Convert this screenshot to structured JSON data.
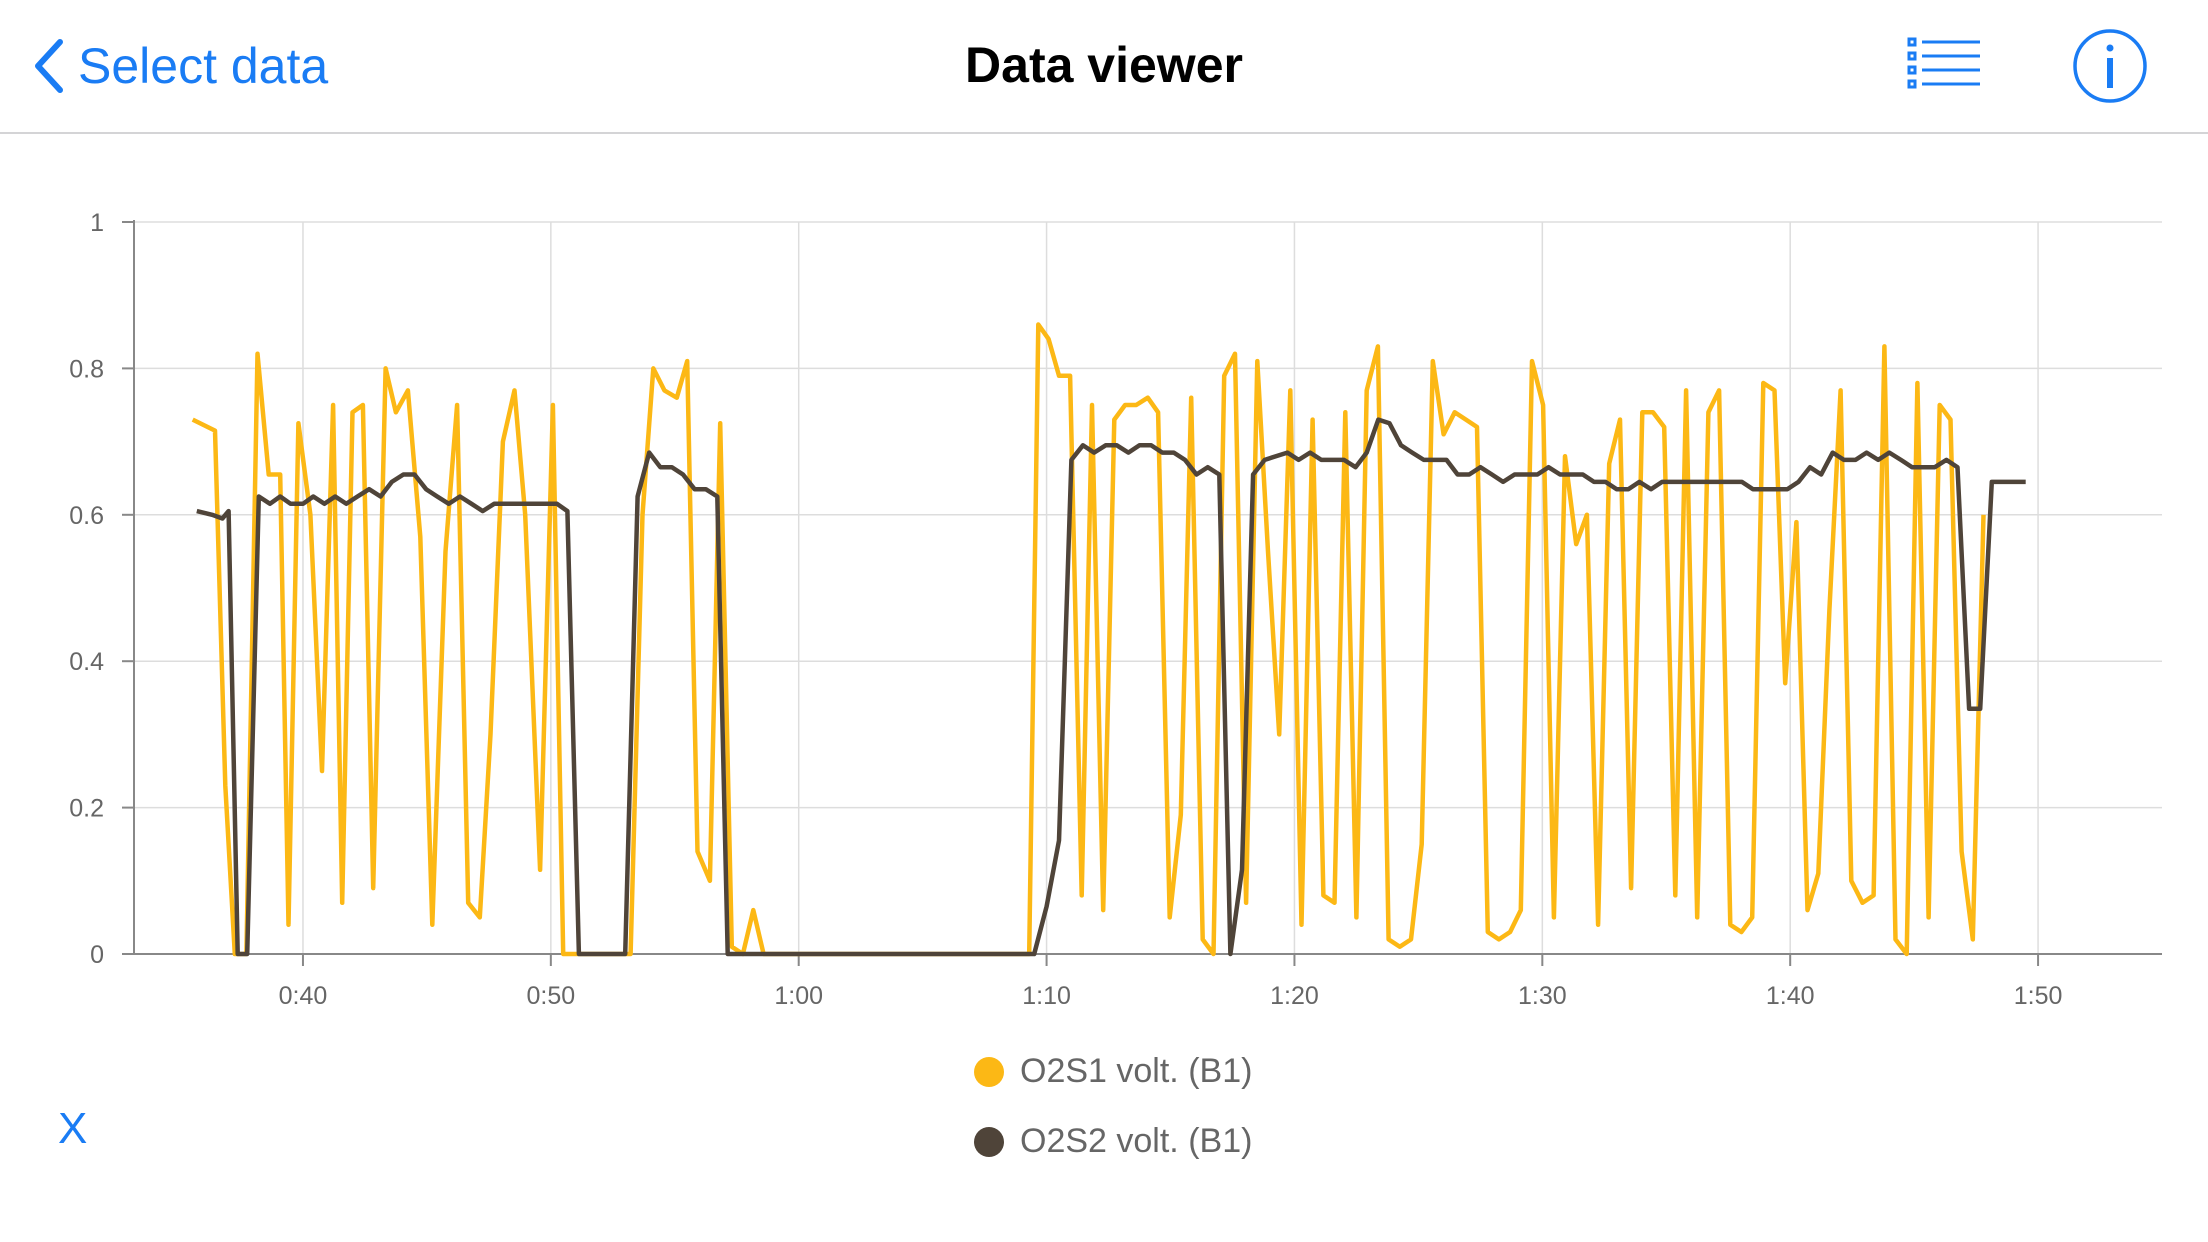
{
  "navbar": {
    "back_label": "Select data",
    "title": "Data viewer"
  },
  "icons": {
    "back": "chevron-left-icon",
    "list": "list-icon",
    "info": "info-icon"
  },
  "colors": {
    "accent": "#1a7cf4",
    "series1": "#fcb815",
    "series2": "#4f4439",
    "grid": "#dddddd",
    "axis": "#888888",
    "tick_text": "#666666"
  },
  "x_axis_label": "X",
  "chart_data": {
    "type": "line",
    "xlabel": "",
    "ylabel": "",
    "ylim": [
      0,
      1
    ],
    "xlim": [
      "0:33:11",
      "1:55:00"
    ],
    "yticks": [
      "0",
      "0.2",
      "0.4",
      "0.6",
      "0.8",
      "1"
    ],
    "xticks": [
      "0:40",
      "0:50",
      "1:00",
      "1:10",
      "1:20",
      "1:30",
      "1:40",
      "1:50"
    ],
    "grid": true,
    "legend_position": "bottom",
    "series": [
      {
        "name": "O2S1 volt. (B1)",
        "color": "#fcb815",
        "points": [
          [
            "0:35:33",
            0.73
          ],
          [
            "0:36:27",
            0.715
          ],
          [
            "0:36:52",
            0.23
          ],
          [
            "0:37:15",
            0.0
          ],
          [
            "0:37:43",
            0.0
          ],
          [
            "0:38:10",
            0.82
          ],
          [
            "0:38:37",
            0.655
          ],
          [
            "0:39:05",
            0.655
          ],
          [
            "0:39:25",
            0.04
          ],
          [
            "0:39:49",
            0.725
          ],
          [
            "0:40:18",
            0.6
          ],
          [
            "0:40:46",
            0.25
          ],
          [
            "0:41:13",
            0.75
          ],
          [
            "0:41:35",
            0.07
          ],
          [
            "0:42:00",
            0.74
          ],
          [
            "0:42:25",
            0.75
          ],
          [
            "0:42:50",
            0.09
          ],
          [
            "0:43:20",
            0.8
          ],
          [
            "0:43:45",
            0.74
          ],
          [
            "0:44:14",
            0.77
          ],
          [
            "0:44:44",
            0.57
          ],
          [
            "0:45:13",
            0.04
          ],
          [
            "0:45:45",
            0.55
          ],
          [
            "0:46:13",
            0.75
          ],
          [
            "0:46:40",
            0.07
          ],
          [
            "0:47:08",
            0.05
          ],
          [
            "0:47:34",
            0.3
          ],
          [
            "0:48:04",
            0.7
          ],
          [
            "0:48:32",
            0.77
          ],
          [
            "0:48:58",
            0.6
          ],
          [
            "0:49:34",
            0.115
          ],
          [
            "0:50:05",
            0.75
          ],
          [
            "0:50:30",
            0.0
          ],
          [
            "0:51:00",
            0.0
          ],
          [
            "0:51:26",
            0.0
          ],
          [
            "0:51:52",
            0.0
          ],
          [
            "0:52:20",
            0.0
          ],
          [
            "0:52:48",
            0.0
          ],
          [
            "0:53:13",
            0.0
          ],
          [
            "0:53:42",
            0.6
          ],
          [
            "0:54:08",
            0.8
          ],
          [
            "0:54:35",
            0.77
          ],
          [
            "0:55:05",
            0.76
          ],
          [
            "0:55:30",
            0.81
          ],
          [
            "0:55:55",
            0.14
          ],
          [
            "0:56:25",
            0.1
          ],
          [
            "0:56:50",
            0.725
          ],
          [
            "0:57:18",
            0.01
          ],
          [
            "0:57:45",
            0.0
          ],
          [
            "0:58:10",
            0.06
          ],
          [
            "0:58:35",
            0.0
          ],
          [
            "1:09:18",
            0.0
          ],
          [
            "1:09:40",
            0.86
          ],
          [
            "1:10:05",
            0.84
          ],
          [
            "1:10:30",
            0.79
          ],
          [
            "1:10:57",
            0.79
          ],
          [
            "1:11:25",
            0.08
          ],
          [
            "1:11:50",
            0.75
          ],
          [
            "1:12:17",
            0.06
          ],
          [
            "1:12:44",
            0.73
          ],
          [
            "1:13:10",
            0.75
          ],
          [
            "1:13:37",
            0.75
          ],
          [
            "1:14:05",
            0.76
          ],
          [
            "1:14:30",
            0.74
          ],
          [
            "1:14:58",
            0.05
          ],
          [
            "1:15:25",
            0.19
          ],
          [
            "1:15:50",
            0.76
          ],
          [
            "1:16:18",
            0.02
          ],
          [
            "1:16:44",
            0.0
          ],
          [
            "1:17:10",
            0.79
          ],
          [
            "1:17:36",
            0.82
          ],
          [
            "1:18:03",
            0.07
          ],
          [
            "1:18:30",
            0.81
          ],
          [
            "1:18:56",
            0.55
          ],
          [
            "1:19:23",
            0.3
          ],
          [
            "1:19:50",
            0.77
          ],
          [
            "1:20:17",
            0.04
          ],
          [
            "1:20:44",
            0.73
          ],
          [
            "1:21:10",
            0.08
          ],
          [
            "1:21:37",
            0.07
          ],
          [
            "1:22:03",
            0.74
          ],
          [
            "1:22:30",
            0.05
          ],
          [
            "1:22:55",
            0.77
          ],
          [
            "1:23:22",
            0.83
          ],
          [
            "1:23:48",
            0.02
          ],
          [
            "1:24:15",
            0.01
          ],
          [
            "1:24:42",
            0.02
          ],
          [
            "1:25:08",
            0.15
          ],
          [
            "1:25:35",
            0.81
          ],
          [
            "1:26:01",
            0.71
          ],
          [
            "1:26:28",
            0.74
          ],
          [
            "1:26:55",
            0.73
          ],
          [
            "1:27:22",
            0.72
          ],
          [
            "1:27:48",
            0.03
          ],
          [
            "1:28:15",
            0.02
          ],
          [
            "1:28:42",
            0.03
          ],
          [
            "1:29:08",
            0.06
          ],
          [
            "1:29:35",
            0.81
          ],
          [
            "1:30:02",
            0.75
          ],
          [
            "1:30:28",
            0.05
          ],
          [
            "1:30:55",
            0.68
          ],
          [
            "1:31:22",
            0.56
          ],
          [
            "1:31:48",
            0.6
          ],
          [
            "1:32:15",
            0.04
          ],
          [
            "1:32:42",
            0.67
          ],
          [
            "1:33:08",
            0.73
          ],
          [
            "1:33:35",
            0.09
          ],
          [
            "1:34:02",
            0.74
          ],
          [
            "1:34:28",
            0.74
          ],
          [
            "1:34:55",
            0.72
          ],
          [
            "1:35:22",
            0.08
          ],
          [
            "1:35:48",
            0.77
          ],
          [
            "1:36:15",
            0.05
          ],
          [
            "1:36:42",
            0.74
          ],
          [
            "1:37:08",
            0.77
          ],
          [
            "1:37:35",
            0.04
          ],
          [
            "1:38:02",
            0.03
          ],
          [
            "1:38:28",
            0.05
          ],
          [
            "1:38:55",
            0.78
          ],
          [
            "1:39:22",
            0.77
          ],
          [
            "1:39:48",
            0.37
          ],
          [
            "1:40:15",
            0.59
          ],
          [
            "1:40:42",
            0.06
          ],
          [
            "1:41:08",
            0.11
          ],
          [
            "1:41:35",
            0.47
          ],
          [
            "1:42:02",
            0.77
          ],
          [
            "1:42:28",
            0.1
          ],
          [
            "1:42:55",
            0.07
          ],
          [
            "1:43:22",
            0.08
          ],
          [
            "1:43:48",
            0.83
          ],
          [
            "1:44:15",
            0.02
          ],
          [
            "1:44:42",
            0.0
          ],
          [
            "1:45:08",
            0.78
          ],
          [
            "1:45:35",
            0.05
          ],
          [
            "1:46:02",
            0.75
          ],
          [
            "1:46:28",
            0.73
          ],
          [
            "1:46:55",
            0.14
          ],
          [
            "1:47:22",
            0.02
          ],
          [
            "1:47:48",
            0.6
          ]
        ]
      },
      {
        "name": "O2S2 volt. (B1)",
        "color": "#4f4439",
        "points": [
          [
            "0:35:43",
            0.605
          ],
          [
            "0:36:20",
            0.6
          ],
          [
            "0:36:45",
            0.595
          ],
          [
            "0:37:00",
            0.605
          ],
          [
            "0:37:22",
            0.0
          ],
          [
            "0:37:45",
            0.0
          ],
          [
            "0:38:13",
            0.625
          ],
          [
            "0:38:40",
            0.615
          ],
          [
            "0:39:05",
            0.625
          ],
          [
            "0:39:30",
            0.615
          ],
          [
            "0:40:00",
            0.615
          ],
          [
            "0:40:25",
            0.625
          ],
          [
            "0:40:52",
            0.615
          ],
          [
            "0:41:18",
            0.625
          ],
          [
            "0:41:45",
            0.615
          ],
          [
            "0:42:12",
            0.625
          ],
          [
            "0:42:40",
            0.635
          ],
          [
            "0:43:08",
            0.625
          ],
          [
            "0:43:35",
            0.645
          ],
          [
            "0:44:03",
            0.655
          ],
          [
            "0:44:30",
            0.655
          ],
          [
            "0:44:58",
            0.635
          ],
          [
            "0:45:25",
            0.625
          ],
          [
            "0:45:53",
            0.615
          ],
          [
            "0:46:20",
            0.625
          ],
          [
            "0:46:48",
            0.615
          ],
          [
            "0:47:15",
            0.605
          ],
          [
            "0:47:43",
            0.615
          ],
          [
            "0:48:10",
            0.615
          ],
          [
            "0:49:00",
            0.615
          ],
          [
            "0:49:38",
            0.615
          ],
          [
            "0:50:15",
            0.615
          ],
          [
            "0:50:40",
            0.605
          ],
          [
            "0:51:08",
            0.0
          ],
          [
            "0:53:00",
            0.0
          ],
          [
            "0:53:30",
            0.625
          ],
          [
            "0:53:58",
            0.685
          ],
          [
            "0:54:25",
            0.665
          ],
          [
            "0:54:53",
            0.665
          ],
          [
            "0:55:20",
            0.655
          ],
          [
            "0:55:48",
            0.635
          ],
          [
            "0:56:15",
            0.635
          ],
          [
            "0:56:43",
            0.625
          ],
          [
            "0:57:08",
            0.0
          ],
          [
            "1:09:30",
            0.0
          ],
          [
            "1:10:00",
            0.065
          ],
          [
            "1:10:30",
            0.155
          ],
          [
            "1:11:00",
            0.675
          ],
          [
            "1:11:28",
            0.695
          ],
          [
            "1:11:55",
            0.685
          ],
          [
            "1:12:23",
            0.695
          ],
          [
            "1:12:50",
            0.695
          ],
          [
            "1:13:18",
            0.685
          ],
          [
            "1:13:45",
            0.695
          ],
          [
            "1:14:13",
            0.695
          ],
          [
            "1:14:40",
            0.685
          ],
          [
            "1:15:08",
            0.685
          ],
          [
            "1:15:35",
            0.675
          ],
          [
            "1:16:03",
            0.655
          ],
          [
            "1:16:30",
            0.665
          ],
          [
            "1:16:58",
            0.655
          ],
          [
            "1:17:25",
            0.0
          ],
          [
            "1:17:53",
            0.115
          ],
          [
            "1:18:20",
            0.655
          ],
          [
            "1:18:48",
            0.675
          ],
          [
            "1:19:15",
            0.68
          ],
          [
            "1:19:43",
            0.685
          ],
          [
            "1:20:10",
            0.675
          ],
          [
            "1:20:38",
            0.685
          ],
          [
            "1:21:05",
            0.675
          ],
          [
            "1:21:33",
            0.675
          ],
          [
            "1:22:00",
            0.675
          ],
          [
            "1:22:28",
            0.665
          ],
          [
            "1:22:55",
            0.685
          ],
          [
            "1:23:23",
            0.73
          ],
          [
            "1:23:50",
            0.725
          ],
          [
            "1:24:18",
            0.695
          ],
          [
            "1:24:45",
            0.685
          ],
          [
            "1:25:13",
            0.675
          ],
          [
            "1:25:40",
            0.675
          ],
          [
            "1:26:08",
            0.675
          ],
          [
            "1:26:35",
            0.655
          ],
          [
            "1:27:03",
            0.655
          ],
          [
            "1:27:30",
            0.665
          ],
          [
            "1:27:58",
            0.655
          ],
          [
            "1:28:25",
            0.645
          ],
          [
            "1:28:53",
            0.655
          ],
          [
            "1:29:20",
            0.655
          ],
          [
            "1:29:48",
            0.655
          ],
          [
            "1:30:15",
            0.665
          ],
          [
            "1:30:43",
            0.655
          ],
          [
            "1:31:10",
            0.655
          ],
          [
            "1:31:38",
            0.655
          ],
          [
            "1:32:05",
            0.645
          ],
          [
            "1:32:33",
            0.645
          ],
          [
            "1:33:00",
            0.635
          ],
          [
            "1:33:28",
            0.635
          ],
          [
            "1:33:55",
            0.645
          ],
          [
            "1:34:23",
            0.635
          ],
          [
            "1:34:50",
            0.645
          ],
          [
            "1:35:18",
            0.645
          ],
          [
            "1:35:45",
            0.645
          ],
          [
            "1:36:13",
            0.645
          ],
          [
            "1:36:40",
            0.645
          ],
          [
            "1:37:08",
            0.645
          ],
          [
            "1:37:35",
            0.645
          ],
          [
            "1:38:03",
            0.645
          ],
          [
            "1:38:30",
            0.635
          ],
          [
            "1:38:58",
            0.635
          ],
          [
            "1:39:25",
            0.635
          ],
          [
            "1:39:53",
            0.635
          ],
          [
            "1:40:20",
            0.645
          ],
          [
            "1:40:48",
            0.665
          ],
          [
            "1:41:15",
            0.655
          ],
          [
            "1:41:43",
            0.685
          ],
          [
            "1:42:10",
            0.675
          ],
          [
            "1:42:38",
            0.675
          ],
          [
            "1:43:05",
            0.685
          ],
          [
            "1:43:33",
            0.675
          ],
          [
            "1:44:00",
            0.685
          ],
          [
            "1:44:28",
            0.675
          ],
          [
            "1:44:55",
            0.665
          ],
          [
            "1:45:23",
            0.665
          ],
          [
            "1:45:50",
            0.665
          ],
          [
            "1:46:18",
            0.675
          ],
          [
            "1:46:45",
            0.665
          ],
          [
            "1:47:13",
            0.335
          ],
          [
            "1:47:40",
            0.335
          ],
          [
            "1:48:08",
            0.645
          ],
          [
            "1:48:35",
            0.645
          ],
          [
            "1:49:03",
            0.645
          ],
          [
            "1:49:30",
            0.645
          ]
        ]
      }
    ]
  }
}
